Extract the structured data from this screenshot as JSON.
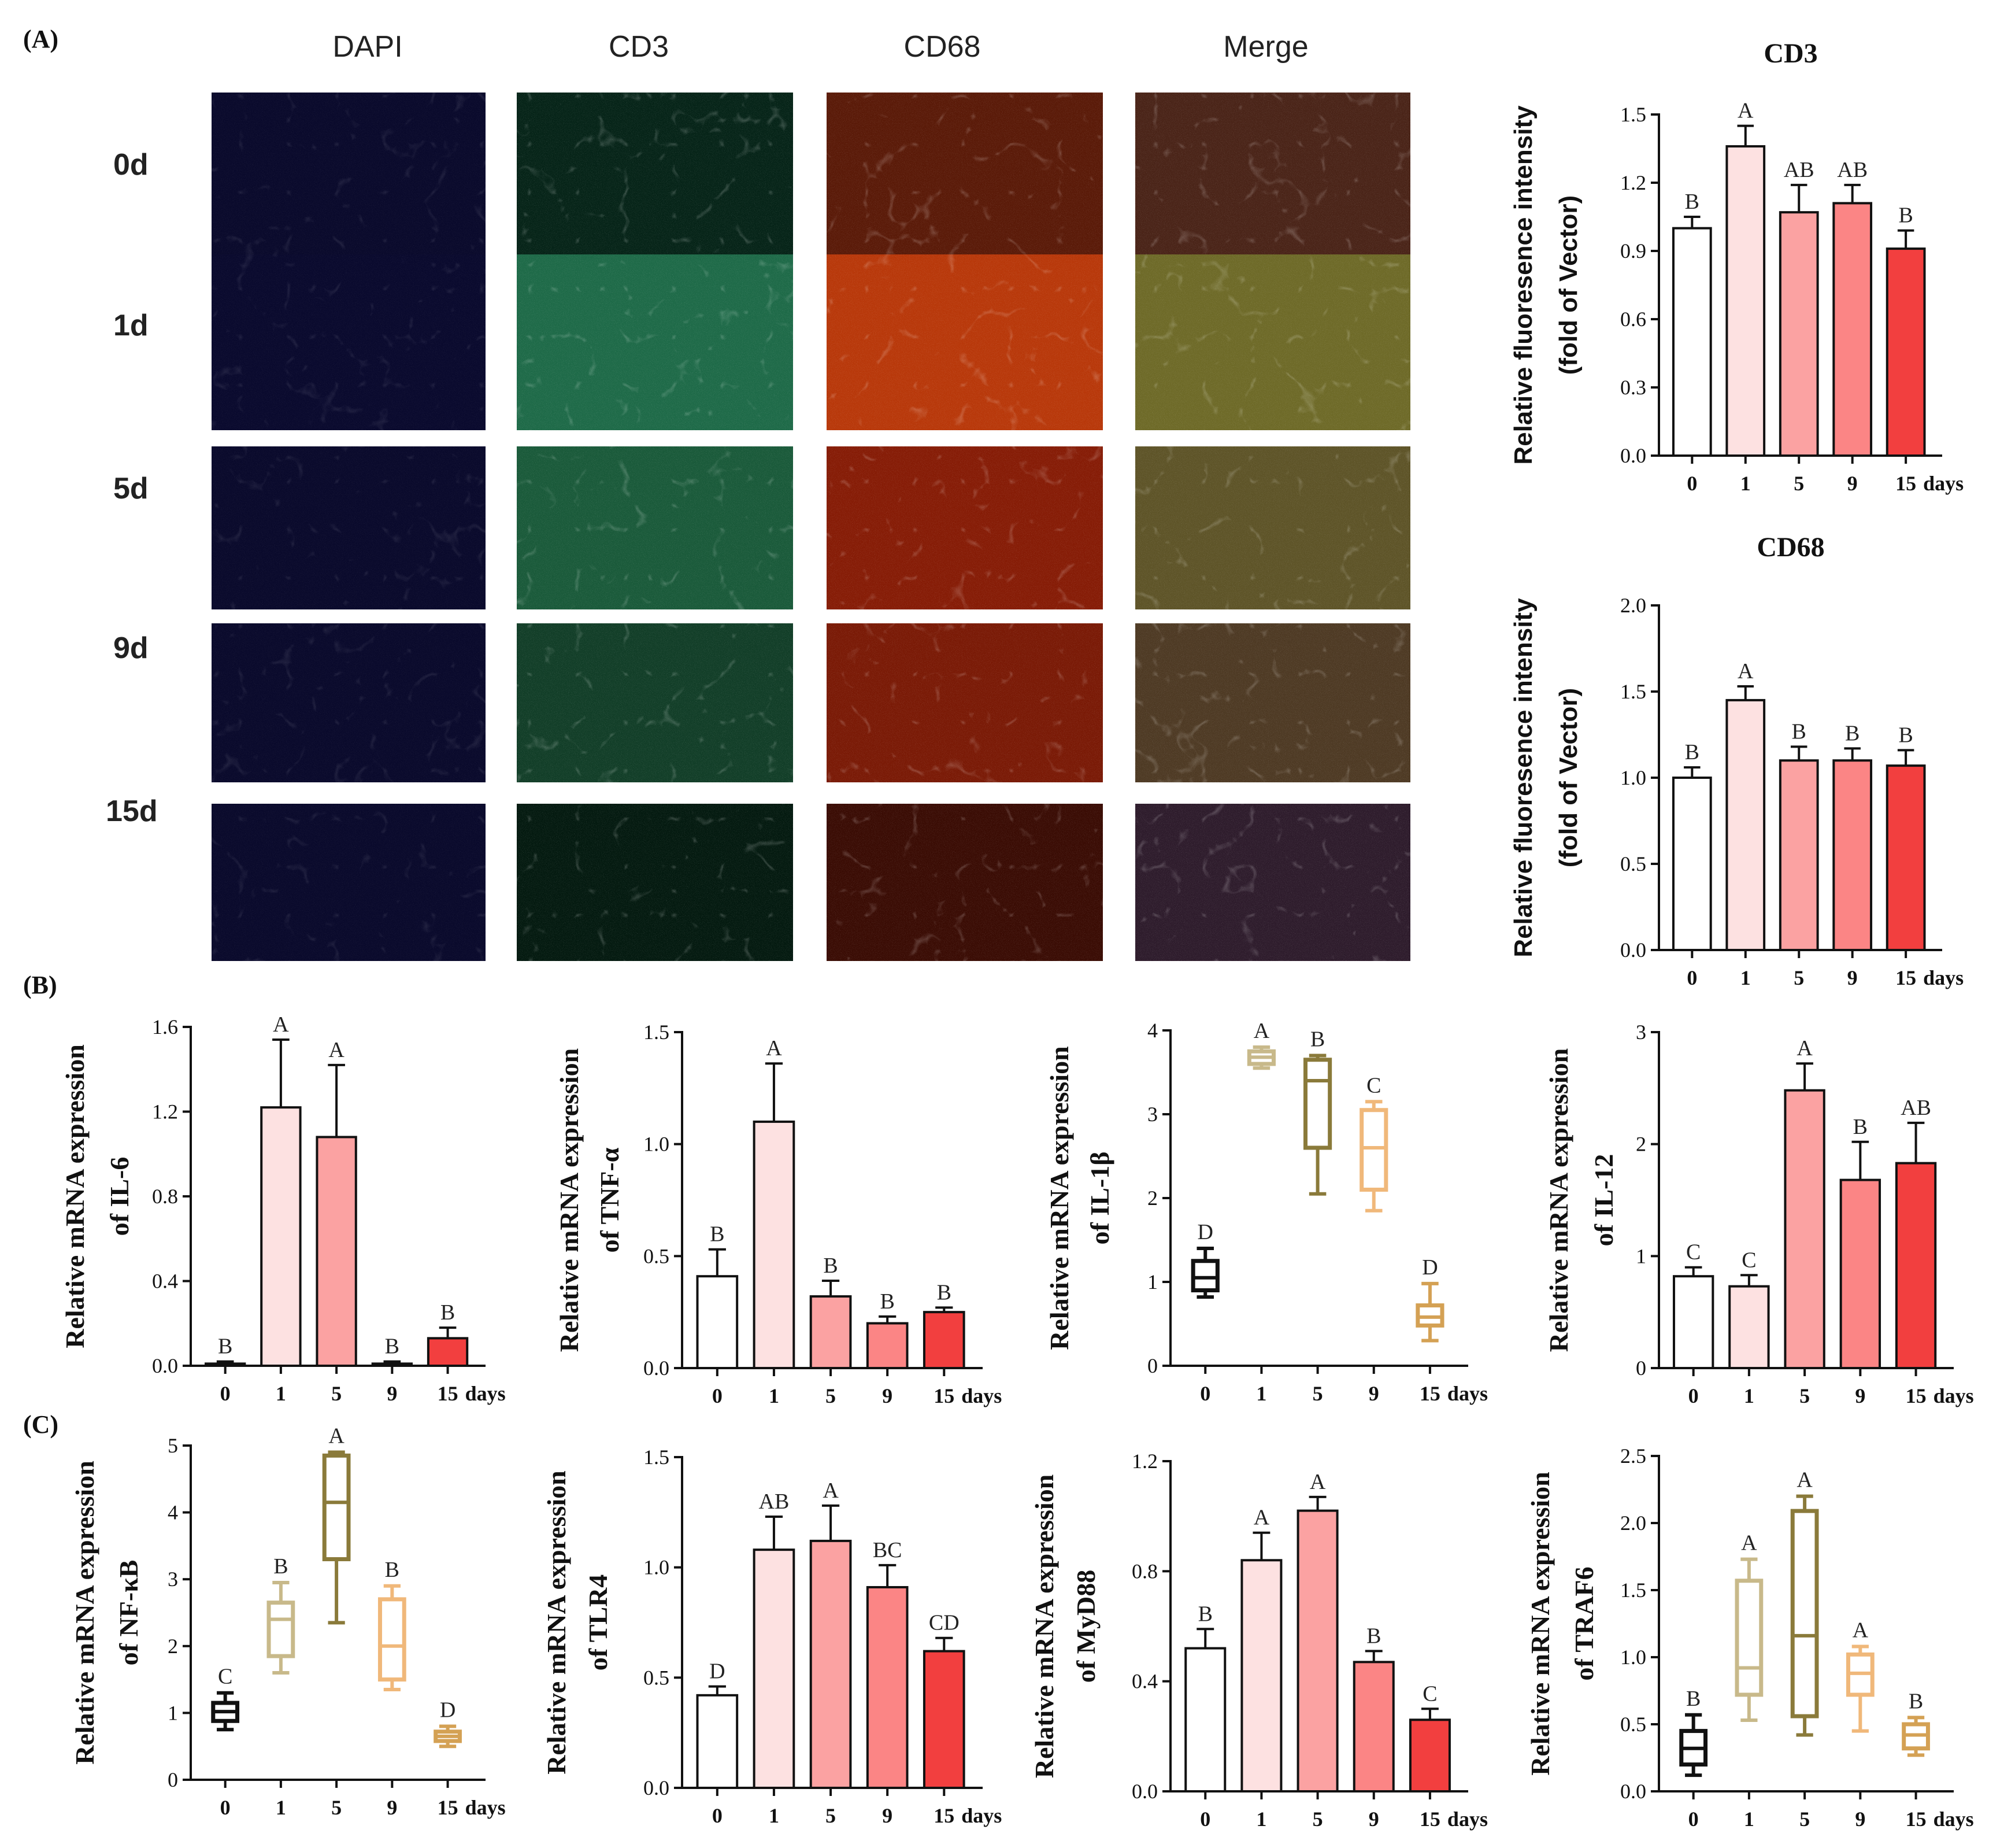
{
  "panel_labels": {
    "a": "(A)",
    "b": "(B)",
    "c": "(C)"
  },
  "micrograph_grid": {
    "columns": [
      "DAPI",
      "CD3",
      "CD68",
      "Merge"
    ],
    "rows": [
      "0d",
      "1d",
      "5d",
      "9d",
      "15d"
    ],
    "tile_colors": [
      [
        "#0a0a2c",
        "#062418",
        "#5a1a08",
        "#4a2418"
      ],
      [
        "#0a0a2e",
        "#1e6a48",
        "#b8380a",
        "#6e6a28"
      ],
      [
        "#0a0a2c",
        "#1a5a3a",
        "#861c06",
        "#5e5428"
      ],
      [
        "#0a0a2c",
        "#123e28",
        "#7a1a06",
        "#4e3a24"
      ],
      [
        "#0a0a2c",
        "#041a10",
        "#3a0c04",
        "#2e1c2c"
      ]
    ]
  },
  "chart_data": [
    {
      "id": "cd3",
      "type": "bar",
      "title": "CD3",
      "ylabel": [
        "Relative fluoresence intensity",
        "(fold of Vector)"
      ],
      "categories": [
        "0",
        "1",
        "5",
        "9",
        "15"
      ],
      "x_unit": "days",
      "yticks": [
        "0.0",
        "0.3",
        "0.6",
        "0.9",
        "1.2",
        "1.5"
      ],
      "ylim": [
        0,
        1.5
      ],
      "values": [
        1.0,
        1.36,
        1.07,
        1.11,
        0.91
      ],
      "errors": [
        0.05,
        0.09,
        0.12,
        0.08,
        0.08
      ],
      "letters": [
        "B",
        "A",
        "AB",
        "AB",
        "B"
      ],
      "colors": [
        "#ffffff",
        "#fde1e1",
        "#fba2a2",
        "#fb8585",
        "#f23f3f"
      ]
    },
    {
      "id": "cd68",
      "type": "bar",
      "title": "CD68",
      "ylabel": [
        "Relative fluoresence intensity",
        "(fold of Vector)"
      ],
      "categories": [
        "0",
        "1",
        "5",
        "9",
        "15"
      ],
      "x_unit": "days",
      "yticks": [
        "0.0",
        "0.5",
        "1.0",
        "1.5",
        "2.0"
      ],
      "ylim": [
        0,
        2.0
      ],
      "values": [
        1.0,
        1.45,
        1.1,
        1.1,
        1.07
      ],
      "errors": [
        0.06,
        0.08,
        0.08,
        0.07,
        0.09
      ],
      "letters": [
        "B",
        "A",
        "B",
        "B",
        "B"
      ],
      "colors": [
        "#ffffff",
        "#fde1e1",
        "#fba2a2",
        "#fb8585",
        "#f23f3f"
      ]
    },
    {
      "id": "il6",
      "type": "bar",
      "title": "",
      "ylabel": [
        "Relative mRNA expression",
        "of IL-6"
      ],
      "categories": [
        "0",
        "1",
        "5",
        "9",
        "15"
      ],
      "x_unit": "days",
      "yticks": [
        "0.0",
        "0.4",
        "0.8",
        "1.2",
        "1.6"
      ],
      "ylim": [
        0,
        1.6
      ],
      "values": [
        0.01,
        1.22,
        1.08,
        0.01,
        0.13
      ],
      "errors": [
        0.01,
        0.32,
        0.34,
        0.01,
        0.05
      ],
      "letters": [
        "B",
        "A",
        "A",
        "B",
        "B"
      ],
      "colors": [
        "#ffffff",
        "#fde1e1",
        "#fba2a2",
        "#fb8585",
        "#f23f3f"
      ]
    },
    {
      "id": "tnfa",
      "type": "bar",
      "title": "",
      "ylabel": [
        "Relative mRNA expression",
        "of TNF-α"
      ],
      "categories": [
        "0",
        "1",
        "5",
        "9",
        "15"
      ],
      "x_unit": "days",
      "yticks": [
        "0.0",
        "0.5",
        "1.0",
        "1.5"
      ],
      "ylim": [
        0,
        1.5
      ],
      "values": [
        0.41,
        1.1,
        0.32,
        0.2,
        0.25
      ],
      "errors": [
        0.12,
        0.26,
        0.07,
        0.03,
        0.02
      ],
      "letters": [
        "B",
        "A",
        "B",
        "B",
        "B"
      ],
      "colors": [
        "#ffffff",
        "#fde1e1",
        "#fba2a2",
        "#fb8585",
        "#f23f3f"
      ]
    },
    {
      "id": "il1b",
      "type": "box",
      "title": "",
      "ylabel": [
        "Relative mRNA expression",
        "of IL-1β"
      ],
      "categories": [
        "0",
        "1",
        "5",
        "9",
        "15"
      ],
      "x_unit": "days",
      "yticks": [
        "0",
        "1",
        "2",
        "3",
        "4"
      ],
      "ylim": [
        0,
        4
      ],
      "boxes": [
        {
          "min": 0.82,
          "q1": 0.9,
          "median": 1.05,
          "q3": 1.25,
          "max": 1.4
        },
        {
          "min": 3.55,
          "q1": 3.6,
          "median": 3.68,
          "q3": 3.75,
          "max": 3.8
        },
        {
          "min": 2.05,
          "q1": 2.6,
          "median": 3.4,
          "q3": 3.65,
          "max": 3.7
        },
        {
          "min": 1.85,
          "q1": 2.1,
          "median": 2.6,
          "q3": 3.05,
          "max": 3.15
        },
        {
          "min": 0.3,
          "q1": 0.48,
          "median": 0.58,
          "q3": 0.72,
          "max": 0.98
        }
      ],
      "letters": [
        "D",
        "A",
        "B",
        "C",
        "D"
      ],
      "colors": [
        "#111111",
        "#c8b98a",
        "#8a7a3a",
        "#f0b87a",
        "#d4a154"
      ]
    },
    {
      "id": "il12",
      "type": "bar",
      "title": "",
      "ylabel": [
        "Relative mRNA expression",
        "of IL-12"
      ],
      "categories": [
        "0",
        "1",
        "5",
        "9",
        "15"
      ],
      "x_unit": "days",
      "yticks": [
        "0",
        "1",
        "2",
        "3"
      ],
      "ylim": [
        0,
        3
      ],
      "values": [
        0.82,
        0.73,
        2.48,
        1.68,
        1.83
      ],
      "errors": [
        0.08,
        0.1,
        0.24,
        0.34,
        0.36
      ],
      "letters": [
        "C",
        "C",
        "A",
        "B",
        "AB"
      ],
      "colors": [
        "#ffffff",
        "#fde1e1",
        "#fba2a2",
        "#fb8585",
        "#f23f3f"
      ]
    },
    {
      "id": "nfkb",
      "type": "box",
      "title": "",
      "ylabel": [
        "Relative mRNA expression",
        "of NF-κB"
      ],
      "categories": [
        "0",
        "1",
        "5",
        "9",
        "15"
      ],
      "x_unit": "days",
      "yticks": [
        "0",
        "1",
        "2",
        "3",
        "4",
        "5"
      ],
      "ylim": [
        0,
        5
      ],
      "boxes": [
        {
          "min": 0.75,
          "q1": 0.88,
          "median": 1.02,
          "q3": 1.15,
          "max": 1.3
        },
        {
          "min": 1.6,
          "q1": 1.85,
          "median": 2.4,
          "q3": 2.65,
          "max": 2.95
        },
        {
          "min": 2.35,
          "q1": 3.3,
          "median": 4.15,
          "q3": 4.85,
          "max": 4.9
        },
        {
          "min": 1.35,
          "q1": 1.5,
          "median": 2.0,
          "q3": 2.7,
          "max": 2.9
        },
        {
          "min": 0.5,
          "q1": 0.58,
          "median": 0.65,
          "q3": 0.72,
          "max": 0.8
        }
      ],
      "letters": [
        "C",
        "B",
        "A",
        "B",
        "D"
      ],
      "colors": [
        "#111111",
        "#c8b98a",
        "#8a7a3a",
        "#f0b87a",
        "#d4a154"
      ]
    },
    {
      "id": "tlr4",
      "type": "bar",
      "title": "",
      "ylabel": [
        "Relative mRNA expression",
        "of TLR4"
      ],
      "categories": [
        "0",
        "1",
        "5",
        "9",
        "15"
      ],
      "x_unit": "days",
      "yticks": [
        "0.0",
        "0.5",
        "1.0",
        "1.5"
      ],
      "ylim": [
        0,
        1.5
      ],
      "values": [
        0.42,
        1.08,
        1.12,
        0.91,
        0.62
      ],
      "errors": [
        0.04,
        0.15,
        0.16,
        0.1,
        0.06
      ],
      "letters": [
        "D",
        "AB",
        "A",
        "BC",
        "CD"
      ],
      "colors": [
        "#ffffff",
        "#fde1e1",
        "#fba2a2",
        "#fb8585",
        "#f23f3f"
      ]
    },
    {
      "id": "myd88",
      "type": "bar",
      "title": "",
      "ylabel": [
        "Relative mRNA expression",
        "of MyD88"
      ],
      "categories": [
        "0",
        "1",
        "5",
        "9",
        "15"
      ],
      "x_unit": "days",
      "yticks": [
        "0.0",
        "0.4",
        "0.8",
        "1.2"
      ],
      "ylim": [
        0,
        1.2
      ],
      "values": [
        0.52,
        0.84,
        1.02,
        0.47,
        0.26
      ],
      "errors": [
        0.07,
        0.1,
        0.05,
        0.04,
        0.04
      ],
      "letters": [
        "B",
        "A",
        "A",
        "B",
        "C"
      ],
      "colors": [
        "#ffffff",
        "#fde1e1",
        "#fba2a2",
        "#fb8585",
        "#f23f3f"
      ]
    },
    {
      "id": "traf6",
      "type": "box",
      "title": "",
      "ylabel": [
        "Relative mRNA expression",
        "of TRAF6"
      ],
      "categories": [
        "0",
        "1",
        "5",
        "9",
        "15"
      ],
      "x_unit": "days",
      "yticks": [
        "0.0",
        "0.5",
        "1.0",
        "1.5",
        "2.0",
        "2.5"
      ],
      "ylim": [
        0,
        2.5
      ],
      "boxes": [
        {
          "min": 0.12,
          "q1": 0.2,
          "median": 0.32,
          "q3": 0.45,
          "max": 0.57
        },
        {
          "min": 0.53,
          "q1": 0.72,
          "median": 0.92,
          "q3": 1.57,
          "max": 1.73
        },
        {
          "min": 0.42,
          "q1": 0.56,
          "median": 1.16,
          "q3": 2.09,
          "max": 2.2
        },
        {
          "min": 0.45,
          "q1": 0.72,
          "median": 0.88,
          "q3": 1.02,
          "max": 1.08
        },
        {
          "min": 0.27,
          "q1": 0.32,
          "median": 0.42,
          "q3": 0.5,
          "max": 0.55
        }
      ],
      "letters": [
        "B",
        "A",
        "A",
        "A",
        "B"
      ],
      "colors": [
        "#111111",
        "#c8b98a",
        "#8a7a3a",
        "#f0b87a",
        "#d4a154"
      ]
    }
  ]
}
